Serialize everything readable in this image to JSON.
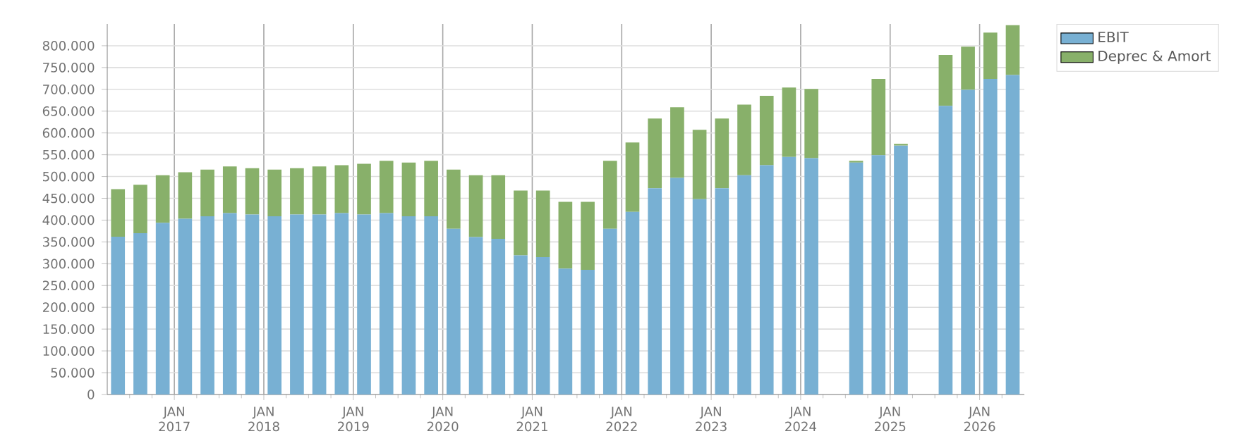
{
  "chart_data": {
    "type": "bar",
    "stacked": true,
    "grid": true,
    "legend": "top right",
    "x": [
      "2016-05-15",
      "2016-08-15",
      "2016-11-15",
      "2017-02-15",
      "2017-05-15",
      "2017-08-15",
      "2017-11-15",
      "2018-02-15",
      "2018-05-15",
      "2018-08-15",
      "2018-11-15",
      "2019-02-15",
      "2019-05-15",
      "2019-08-15",
      "2019-11-15",
      "2020-02-15",
      "2020-05-15",
      "2020-08-15",
      "2020-11-15",
      "2021-02-15",
      "2021-05-15",
      "2021-08-15",
      "2021-11-15",
      "2022-02-15",
      "2022-05-15",
      "2022-08-15",
      "2022-11-15",
      "2023-02-15",
      "2023-05-15",
      "2023-08-15",
      "2023-11-15",
      "2024-02-15",
      "2024-05-15",
      "2024-08-15",
      "2024-11-15",
      "2025-02-15",
      "2025-05-15",
      "2025-08-15",
      "2025-11-15",
      "2026-02-15",
      "2026-05-15"
    ],
    "series": [
      {
        "name": "EBIT",
        "color": "#78b0d3",
        "values": [
          362000,
          370000,
          394000,
          403000,
          409000,
          416000,
          413000,
          409000,
          413000,
          413000,
          416000,
          413000,
          416000,
          409000,
          409000,
          380000,
          361000,
          357000,
          319000,
          315000,
          289000,
          286000,
          380000,
          419000,
          473000,
          497000,
          448000,
          473000,
          503000,
          526000,
          545000,
          542000,
          null,
          532000,
          549000,
          571000,
          null,
          662000,
          699000,
          724000,
          733000
        ]
      },
      {
        "name": "Deprec & Amort",
        "color": "#88b06a",
        "values": [
          109000,
          111000,
          109000,
          107000,
          107000,
          107000,
          106000,
          107000,
          106000,
          110000,
          110000,
          116000,
          120000,
          123000,
          127000,
          136000,
          142000,
          146000,
          149000,
          153000,
          153000,
          156000,
          156000,
          159000,
          160000,
          162000,
          159000,
          160000,
          162000,
          159000,
          159000,
          159000,
          null,
          4000,
          175000,
          4000,
          null,
          117000,
          99000,
          106000,
          114000
        ]
      }
    ],
    "xlim": [
      "2016-04-01",
      "2026-07-01"
    ],
    "xticks": [
      {
        "value": "2016-07-01",
        "label": null
      },
      {
        "value": "2016-10-01",
        "label": null
      },
      {
        "value": "2017-01-01",
        "label": "JAN 2017"
      },
      {
        "value": "2017-04-01",
        "label": null
      },
      {
        "value": "2017-07-01",
        "label": null
      },
      {
        "value": "2017-10-01",
        "label": null
      },
      {
        "value": "2018-01-01",
        "label": "JAN 2018"
      },
      {
        "value": "2018-04-01",
        "label": null
      },
      {
        "value": "2018-07-01",
        "label": null
      },
      {
        "value": "2018-10-01",
        "label": null
      },
      {
        "value": "2019-01-01",
        "label": "JAN 2019"
      },
      {
        "value": "2019-04-01",
        "label": null
      },
      {
        "value": "2019-07-01",
        "label": null
      },
      {
        "value": "2019-10-01",
        "label": null
      },
      {
        "value": "2020-01-01",
        "label": "JAN 2020"
      },
      {
        "value": "2020-04-01",
        "label": null
      },
      {
        "value": "2020-07-01",
        "label": null
      },
      {
        "value": "2020-10-01",
        "label": null
      },
      {
        "value": "2021-01-01",
        "label": "JAN 2021"
      },
      {
        "value": "2021-04-01",
        "label": null
      },
      {
        "value": "2021-07-01",
        "label": null
      },
      {
        "value": "2021-10-01",
        "label": null
      },
      {
        "value": "2022-01-01",
        "label": "JAN 2022"
      },
      {
        "value": "2022-04-01",
        "label": null
      },
      {
        "value": "2022-07-01",
        "label": null
      },
      {
        "value": "2022-10-01",
        "label": null
      },
      {
        "value": "2023-01-01",
        "label": "JAN 2023"
      },
      {
        "value": "2023-04-01",
        "label": null
      },
      {
        "value": "2023-07-01",
        "label": null
      },
      {
        "value": "2023-10-01",
        "label": null
      },
      {
        "value": "2024-01-01",
        "label": "JAN 2024"
      },
      {
        "value": "2024-04-01",
        "label": null
      },
      {
        "value": "2024-07-01",
        "label": null
      },
      {
        "value": "2024-10-01",
        "label": null
      },
      {
        "value": "2025-01-01",
        "label": "JAN 2025"
      },
      {
        "value": "2025-04-01",
        "label": null
      },
      {
        "value": "2025-07-01",
        "label": null
      },
      {
        "value": "2025-10-01",
        "label": null
      },
      {
        "value": "2026-01-01",
        "label": "JAN 2026"
      },
      {
        "value": "2026-04-01",
        "label": null
      }
    ],
    "ylim": [
      0,
      850000
    ],
    "yticks": [
      0,
      {
        "value": 50000,
        "label": "50.000"
      },
      {
        "value": 100000,
        "label": "100.000"
      },
      {
        "value": 150000,
        "label": "150.000"
      },
      {
        "value": 200000,
        "label": "200.000"
      },
      {
        "value": 250000,
        "label": "250.000"
      },
      {
        "value": 300000,
        "label": "300.000"
      },
      {
        "value": 350000,
        "label": "350.000"
      },
      {
        "value": 400000,
        "label": "400.000"
      },
      {
        "value": 450000,
        "label": "450.000"
      },
      {
        "value": 500000,
        "label": "500.000"
      },
      {
        "value": 550000,
        "label": "550.000"
      },
      {
        "value": 600000,
        "label": "600.000"
      },
      {
        "value": 650000,
        "label": "650.000"
      },
      {
        "value": 700000,
        "label": "700.000"
      },
      {
        "value": 750000,
        "label": "750.000"
      },
      {
        "value": 800000,
        "label": "800.000"
      }
    ]
  }
}
